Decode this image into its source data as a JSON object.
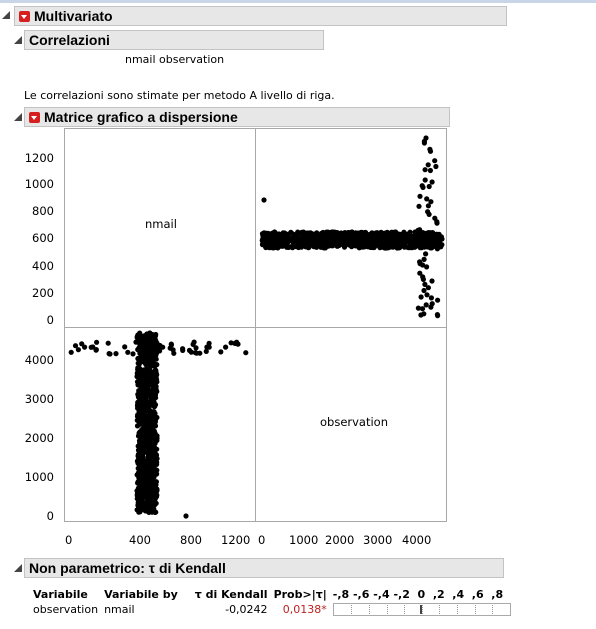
{
  "multivariato": {
    "title": "Multivariato"
  },
  "correlazioni": {
    "title": "Correlazioni",
    "columns": "nmail observation",
    "note": "Le correlazioni sono stimate per metodo A livello di riga."
  },
  "scatter": {
    "title": "Matrice grafico a dispersione",
    "diag_labels": [
      "nmail",
      "observation"
    ],
    "top_y_ticks": [
      "1200",
      "1000",
      "800",
      "600",
      "400",
      "200",
      "0"
    ],
    "bottom_y_ticks": [
      "4000",
      "3000",
      "2000",
      "1000",
      "0"
    ],
    "left_x_ticks": [
      "0",
      "400",
      "800",
      "1200"
    ],
    "right_x_ticks": [
      "0",
      "1000",
      "2000",
      "3000",
      "4000"
    ]
  },
  "kendall": {
    "title": "Non parametrico: τ di Kendall",
    "headers": {
      "variabile": "Variabile",
      "variabile_by": "Variabile by",
      "tau": "τ di Kendall",
      "prob": "Prob>|τ|",
      "scale": "-,8 -,6 -,4 -,2  0  ,2  ,4  ,6  ,8"
    },
    "row": {
      "variabile": "observation",
      "variabile_by": "nmail",
      "tau": "-0,0242",
      "prob": "0,0138*"
    },
    "tau_value": -0.0242
  },
  "chart_data": {
    "type": "scatter",
    "title": "Matrice grafico a dispersione",
    "variables": [
      "nmail",
      "observation"
    ],
    "nmail_range": [
      0,
      1350
    ],
    "observation_range": [
      0,
      4600
    ],
    "notes": "Scatterplot matrix; nmail concentrated around 560-620, observation 0-4600"
  }
}
